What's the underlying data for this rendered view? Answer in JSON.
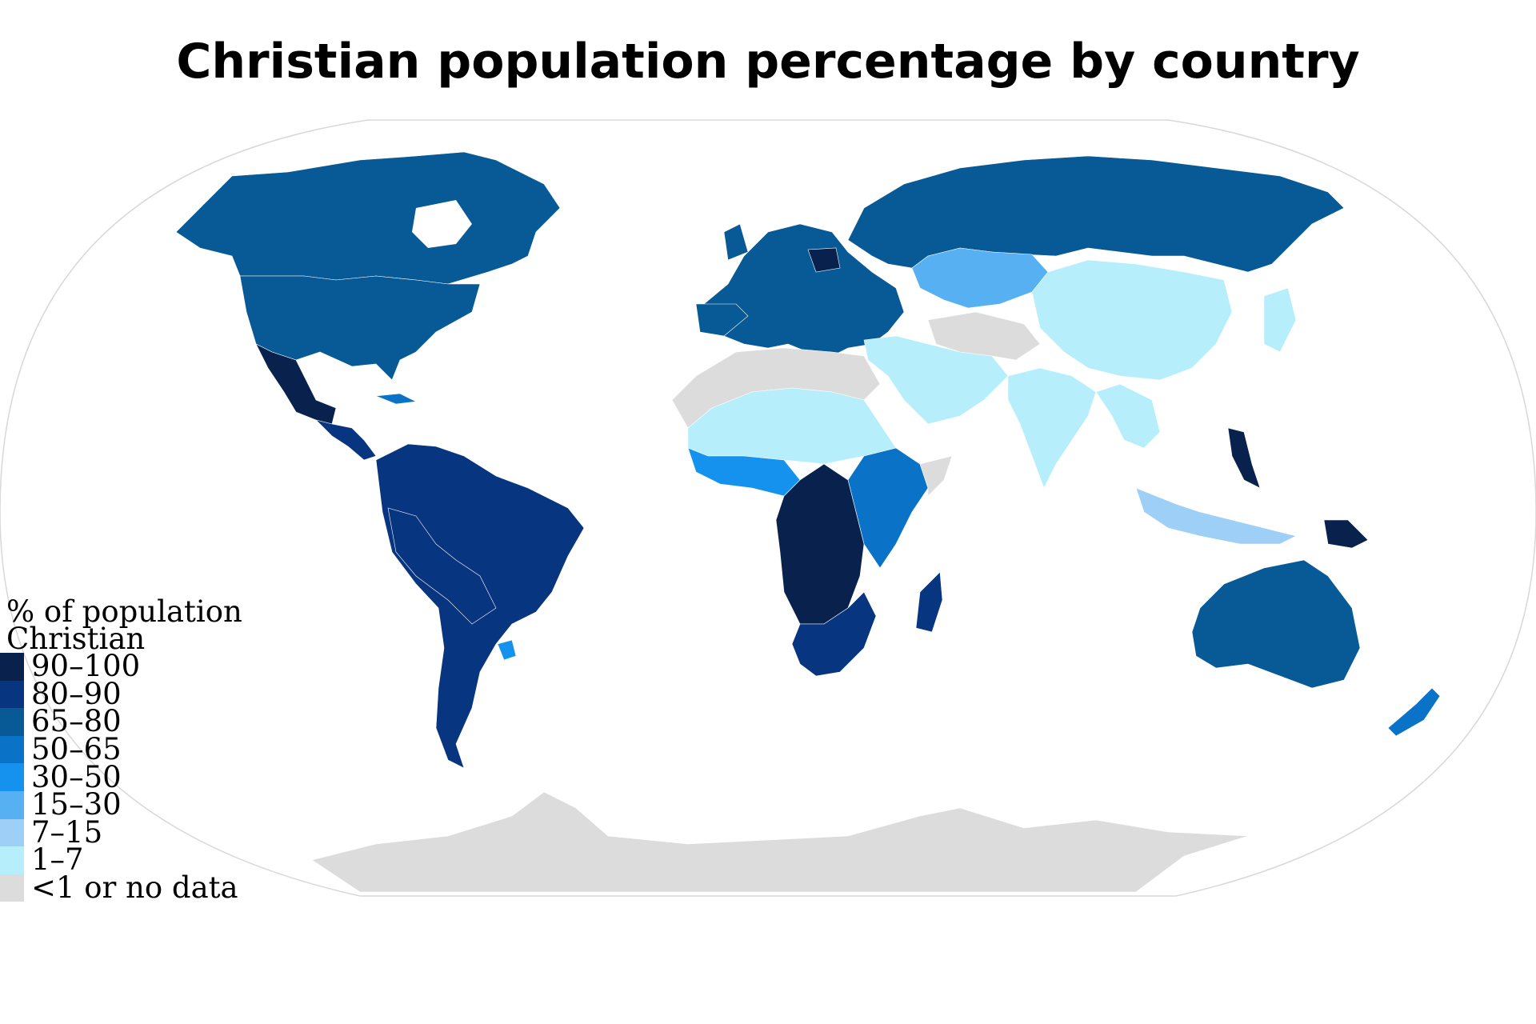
{
  "title": "Christian population percentage by country",
  "legend": {
    "title_line1": "% of population",
    "title_line2": "Christian",
    "classes": [
      {
        "label": "90–100",
        "color": "#08214d"
      },
      {
        "label": "80–90",
        "color": "#08357f"
      },
      {
        "label": "65–80",
        "color": "#075a96"
      },
      {
        "label": "50–65",
        "color": "#0a73c8"
      },
      {
        "label": "30–50",
        "color": "#1492ee"
      },
      {
        "label": "15–30",
        "color": "#56b0f2"
      },
      {
        "label": "7–15",
        "color": "#9ed0f7"
      },
      {
        "label": "1–7",
        "color": "#b6eefc"
      },
      {
        "label": "<1 or no data",
        "color": "#dcdcdc"
      }
    ]
  },
  "map": {
    "ocean_color": "#ffffff",
    "outline_color": "#d8d8d8",
    "regions": [
      {
        "name": "Greenland",
        "class": "90–100"
      },
      {
        "name": "Canada",
        "class": "65–80"
      },
      {
        "name": "United States",
        "class": "65–80"
      },
      {
        "name": "Mexico",
        "class": "90–100"
      },
      {
        "name": "Central America",
        "class": "80–90"
      },
      {
        "name": "Cuba",
        "class": "50–65"
      },
      {
        "name": "South America",
        "class": "80–90"
      },
      {
        "name": "Uruguay",
        "class": "30–50"
      },
      {
        "name": "Europe",
        "class": "65–80"
      },
      {
        "name": "Poland",
        "class": "90–100"
      },
      {
        "name": "Russia",
        "class": "65–80"
      },
      {
        "name": "Kazakhstan",
        "class": "15–30"
      },
      {
        "name": "China",
        "class": "1–7"
      },
      {
        "name": "India",
        "class": "1–7"
      },
      {
        "name": "Middle East",
        "class": "1–7"
      },
      {
        "name": "North Africa",
        "class": "<1 or no data"
      },
      {
        "name": "Sahel",
        "class": "1–7"
      },
      {
        "name": "West Africa",
        "class": "30–50"
      },
      {
        "name": "Central Africa",
        "class": "90–100"
      },
      {
        "name": "East Africa",
        "class": "50–65"
      },
      {
        "name": "Southern Africa",
        "class": "80–90"
      },
      {
        "name": "Madagascar",
        "class": "80–90"
      },
      {
        "name": "Philippines",
        "class": "90–100"
      },
      {
        "name": "Indonesia",
        "class": "7–15"
      },
      {
        "name": "Papua New Guinea",
        "class": "90–100"
      },
      {
        "name": "Australia",
        "class": "65–80"
      },
      {
        "name": "New Zealand",
        "class": "50–65"
      },
      {
        "name": "Antarctica",
        "class": "<1 or no data"
      }
    ]
  }
}
